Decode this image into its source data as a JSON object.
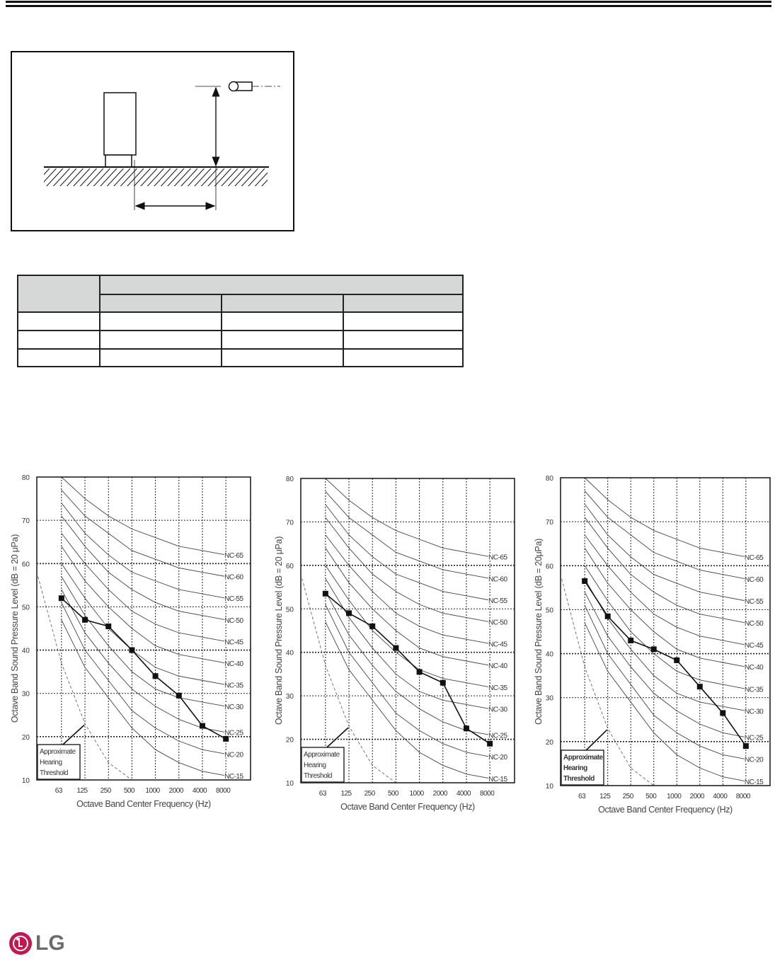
{
  "brand": {
    "logo_text": "LG",
    "logo_color": "#c6164f",
    "text_color": "#6b6b6b"
  },
  "diagram": {
    "icons": [
      "outdoor-unit",
      "microphone",
      "dimension-arrows",
      "ground-hatch"
    ]
  },
  "table": {
    "header_fill": "#d6d8d7",
    "header_rows": 2,
    "body_rows": 3,
    "columns": 4
  },
  "chart_data": [
    {
      "type": "line",
      "x": [
        "63",
        "125",
        "250",
        "500",
        "1000",
        "2000",
        "4000",
        "8000"
      ],
      "xlabel": "Octave Band Center Frequency (Hz)",
      "ylabel": "Octave Band Sound Pressure Level (dB = 20 μPa)",
      "yticks": [
        "80",
        "70",
        "60",
        "50",
        "40",
        "30",
        "20",
        "10"
      ],
      "ylim": [
        10,
        80
      ],
      "grid": true,
      "series": [
        {
          "values": [
            52,
            47,
            45.5,
            40,
            34,
            29.5,
            22.5,
            19.5
          ]
        }
      ],
      "legend_box": [
        "Approximate",
        "Hearing",
        "Threshold"
      ]
    },
    {
      "type": "line",
      "x": [
        "63",
        "125",
        "250",
        "500",
        "1000",
        "2000",
        "4000",
        "8000"
      ],
      "xlabel": "Octave Band Center Frequency (Hz)",
      "ylabel": "Octave Band Sound Pressure Level (dB = 20 μPa)",
      "yticks": [
        "80",
        "70",
        "60",
        "50",
        "40",
        "30",
        "20",
        "10"
      ],
      "ylim": [
        10,
        80
      ],
      "grid": true,
      "series": [
        {
          "values": [
            53.5,
            49,
            46,
            41,
            35.5,
            33,
            22.5,
            19
          ]
        }
      ],
      "legend_box": [
        "Approximate",
        "Hearing",
        "Threshold"
      ]
    },
    {
      "type": "line",
      "x": [
        "63",
        "125",
        "250",
        "500",
        "1000",
        "2000",
        "4000",
        "8000"
      ],
      "xlabel": "Octave Band Center Frequency (Hz)",
      "ylabel": "Octave Band Sound Pressure Level (dB = 20μPa)",
      "yticks": [
        "80",
        "70",
        "60",
        "50",
        "40",
        "30",
        "20",
        "10"
      ],
      "ylim": [
        10,
        80
      ],
      "grid": true,
      "series": [
        {
          "values": [
            56.5,
            48.5,
            43,
            41,
            38.5,
            32.5,
            26.5,
            19
          ]
        }
      ],
      "legend_box": [
        "Approximate",
        "Hearing",
        "Threshold"
      ]
    }
  ],
  "nc_curves": [
    {
      "label": "NC-65",
      "values": [
        80,
        75,
        71,
        68,
        66,
        64,
        63,
        62
      ]
    },
    {
      "label": "NC-60",
      "values": [
        77,
        71,
        67,
        63,
        61,
        59,
        58,
        57
      ]
    },
    {
      "label": "NC-55",
      "values": [
        74,
        67,
        62,
        58,
        56,
        54,
        53,
        52
      ]
    },
    {
      "label": "NC-50",
      "values": [
        71,
        64,
        58,
        54,
        51,
        49,
        48,
        47
      ]
    },
    {
      "label": "NC-45",
      "values": [
        67,
        60,
        54,
        49,
        46,
        44,
        43,
        42
      ]
    },
    {
      "label": "NC-40",
      "values": [
        64,
        56,
        50,
        45,
        41,
        39,
        38,
        37
      ]
    },
    {
      "label": "NC-35",
      "values": [
        60,
        52,
        45,
        40,
        36,
        34,
        33,
        32
      ]
    },
    {
      "label": "NC-30",
      "values": [
        57,
        48,
        41,
        35,
        31,
        29,
        28,
        27
      ]
    },
    {
      "label": "NC-25",
      "values": [
        54,
        44,
        37,
        31,
        27,
        24,
        22,
        21
      ]
    },
    {
      "label": "NC-20",
      "values": [
        51,
        40,
        33,
        26,
        22,
        19,
        17,
        16
      ]
    },
    {
      "label": "NC-15",
      "values": [
        47,
        36,
        29,
        22,
        17,
        14,
        12,
        11
      ]
    }
  ],
  "hearing_threshold": {
    "x_index": [
      -1,
      0,
      1,
      2,
      3
    ],
    "values": [
      57,
      37,
      23,
      14,
      10
    ]
  }
}
